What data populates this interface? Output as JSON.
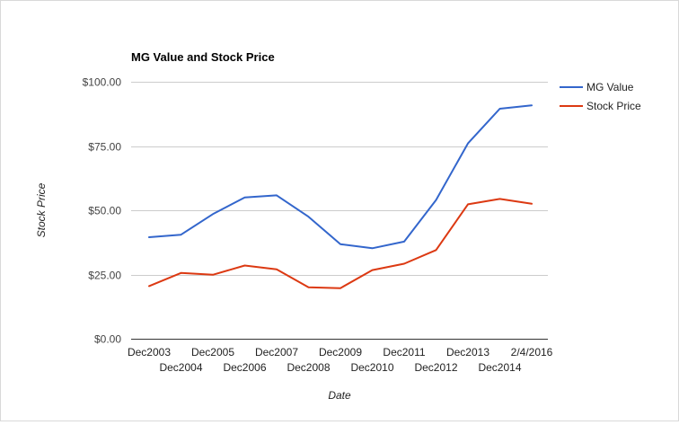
{
  "chart_data": {
    "type": "line",
    "title": "MG Value and Stock Price",
    "xlabel": "Date",
    "ylabel": "Stock Price",
    "categories": [
      "Dec2003",
      "Dec2004",
      "Dec2005",
      "Dec2006",
      "Dec2007",
      "Dec2008",
      "Dec2009",
      "Dec2010",
      "Dec2011",
      "Dec2012",
      "Dec2013",
      "Dec2014",
      "2/4/2016"
    ],
    "series": [
      {
        "name": "MG Value",
        "color": "#3366cc",
        "values": [
          39.5,
          40.5,
          48.5,
          55.0,
          55.8,
          47.5,
          36.8,
          35.2,
          37.8,
          54.0,
          76.0,
          89.5,
          90.8
        ]
      },
      {
        "name": "Stock Price",
        "color": "#dc3912",
        "values": [
          20.5,
          25.6,
          24.9,
          28.5,
          27.0,
          20.0,
          19.7,
          26.7,
          29.2,
          34.5,
          52.3,
          54.4,
          52.5
        ]
      }
    ],
    "yticks": [
      "$0.00",
      "$25.00",
      "$50.00",
      "$75.00",
      "$100.00"
    ],
    "ytick_values": [
      0,
      25,
      50,
      75,
      100
    ],
    "ylim": [
      0,
      100
    ],
    "grid": true,
    "legend": "right"
  }
}
